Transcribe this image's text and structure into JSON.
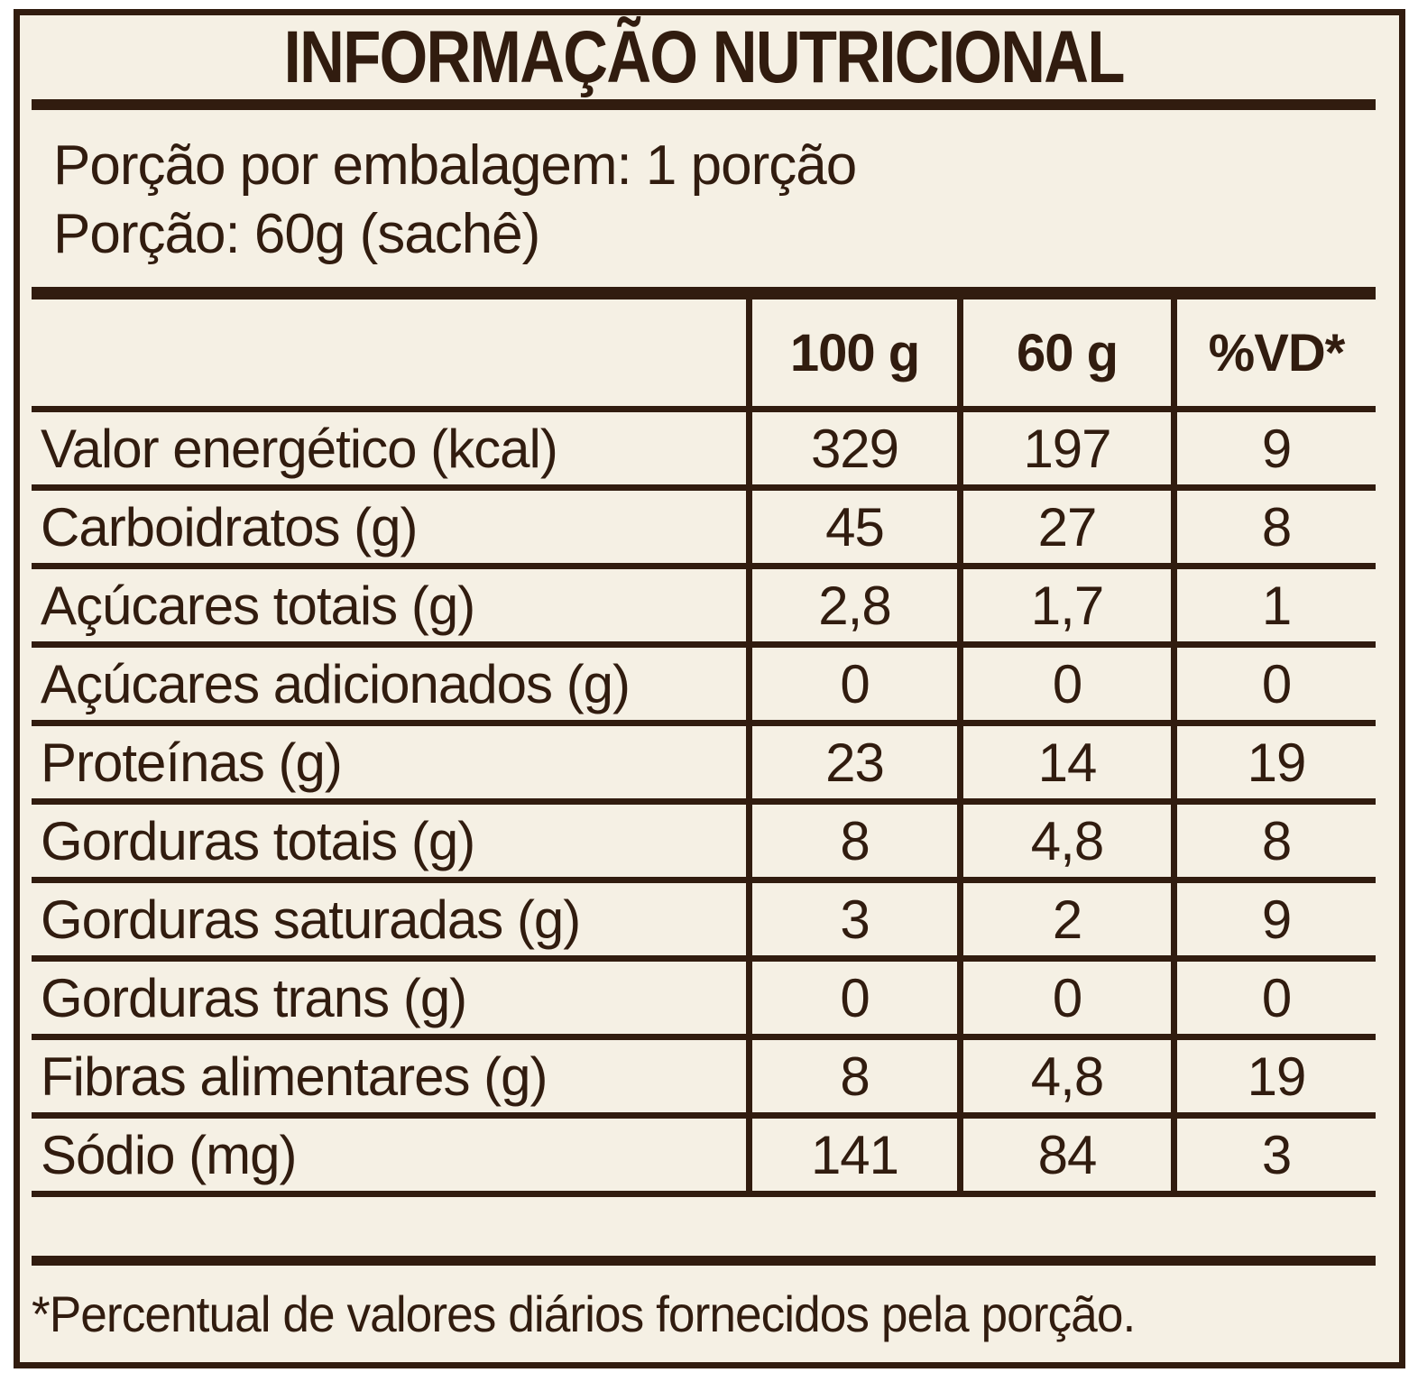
{
  "label": {
    "title": "INFORMAÇÃO NUTRICIONAL",
    "serving": {
      "per_package": "Porção por embalagem: 1 porção",
      "portion": "Porção: 60g (sachê)"
    },
    "table": {
      "columns": [
        "100 g",
        "60 g",
        "%VD*"
      ],
      "rows": [
        {
          "label": "Valor energético (kcal)",
          "per100g": "329",
          "per60g": "197",
          "vd": "9"
        },
        {
          "label": "Carboidratos (g)",
          "per100g": "45",
          "per60g": "27",
          "vd": "8"
        },
        {
          "label": "Açúcares totais (g)",
          "per100g": "2,8",
          "per60g": "1,7",
          "vd": "1"
        },
        {
          "label": "Açúcares adicionados (g)",
          "per100g": "0",
          "per60g": "0",
          "vd": "0"
        },
        {
          "label": "Proteínas (g)",
          "per100g": "23",
          "per60g": "14",
          "vd": "19"
        },
        {
          "label": "Gorduras totais (g)",
          "per100g": "8",
          "per60g": "4,8",
          "vd": "8"
        },
        {
          "label": "Gorduras saturadas (g)",
          "per100g": "3",
          "per60g": "2",
          "vd": "9"
        },
        {
          "label": "Gorduras trans (g)",
          "per100g": "0",
          "per60g": "0",
          "vd": "0"
        },
        {
          "label": "Fibras alimentares (g)",
          "per100g": "8",
          "per60g": "4,8",
          "vd": "19"
        },
        {
          "label": "Sódio (mg)",
          "per100g": "141",
          "per60g": "84",
          "vd": "3"
        }
      ]
    },
    "footnote": "*Percentual de valores diários fornecidos pela porção.",
    "colors": {
      "ink": "#311c0f",
      "paper": "#f5f0e4"
    }
  }
}
